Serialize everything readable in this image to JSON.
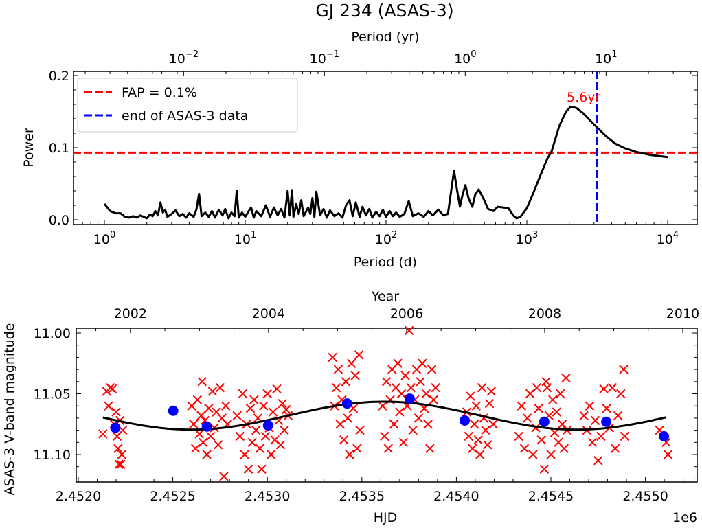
{
  "title": "GJ 234 (ASAS-3)",
  "colors": {
    "fap": "#ff0000",
    "end_line": "#0000ff",
    "curve": "#000000",
    "obs": "#ff0000",
    "binned": "#0000ff",
    "annotation": "#ff0000"
  },
  "chart_data": [
    {
      "type": "line",
      "name": "periodogram",
      "xlabel": "Period (d)",
      "ylabel": "Power",
      "top_xlabel": "Period (yr)",
      "xscale": "log",
      "xlim": [
        0.65,
        15000
      ],
      "ylim": [
        -0.007,
        0.205
      ],
      "xticks": [
        1,
        10,
        100,
        1000,
        10000
      ],
      "xtick_labels": [
        {
          "base": "10",
          "exp": "0"
        },
        {
          "base": "10",
          "exp": "1"
        },
        {
          "base": "10",
          "exp": "2"
        },
        {
          "base": "10",
          "exp": "3"
        },
        {
          "base": "10",
          "exp": "4"
        }
      ],
      "top_xticks_yr": [
        0.01,
        0.1,
        1,
        10
      ],
      "top_xtick_labels": [
        {
          "base": "10",
          "exp": "−2"
        },
        {
          "base": "10",
          "exp": "−1"
        },
        {
          "base": "10",
          "exp": "0"
        },
        {
          "base": "10",
          "exp": "1"
        }
      ],
      "yticks": [
        0.0,
        0.1,
        0.2
      ],
      "ytick_labels": [
        "0.0",
        "0.1",
        "0.2"
      ],
      "fap_level": 0.093,
      "end_of_data_period_d": 3130,
      "annotation": {
        "text": "5.6yr",
        "period_d": 2045,
        "power": 0.176
      },
      "legend": {
        "placement": "top-left",
        "entries": [
          {
            "label": "FAP = 0.1%",
            "color": "#ff0000",
            "style": "dashed"
          },
          {
            "label": "end of ASAS-3 data",
            "color": "#0000ff",
            "style": "dashed"
          }
        ]
      },
      "series": [
        [
          1.0,
          0.022
        ],
        [
          1.1,
          0.012
        ],
        [
          1.2,
          0.009
        ],
        [
          1.3,
          0.009
        ],
        [
          1.4,
          0.004
        ],
        [
          1.5,
          0.003
        ],
        [
          1.6,
          0.005
        ],
        [
          1.7,
          0.003
        ],
        [
          1.8,
          0.006
        ],
        [
          1.9,
          0.004
        ],
        [
          2.0,
          0.002
        ],
        [
          2.1,
          0.007
        ],
        [
          2.2,
          0.005
        ],
        [
          2.3,
          0.012
        ],
        [
          2.4,
          0.006
        ],
        [
          2.5,
          0.024
        ],
        [
          2.6,
          0.01
        ],
        [
          2.7,
          0.014
        ],
        [
          2.8,
          0.004
        ],
        [
          3.0,
          0.008
        ],
        [
          3.2,
          0.013
        ],
        [
          3.4,
          0.005
        ],
        [
          3.6,
          0.008
        ],
        [
          3.8,
          0.003
        ],
        [
          4.0,
          0.009
        ],
        [
          4.3,
          0.004
        ],
        [
          4.5,
          0.014
        ],
        [
          4.7,
          0.036
        ],
        [
          4.9,
          0.005
        ],
        [
          5.2,
          0.01
        ],
        [
          5.5,
          0.004
        ],
        [
          5.8,
          0.012
        ],
        [
          6.1,
          0.003
        ],
        [
          6.5,
          0.014
        ],
        [
          6.9,
          0.006
        ],
        [
          7.2,
          0.015
        ],
        [
          7.6,
          0.002
        ],
        [
          8.0,
          0.01
        ],
        [
          8.4,
          0.005
        ],
        [
          8.7,
          0.04
        ],
        [
          9.0,
          0.003
        ],
        [
          9.5,
          0.01
        ],
        [
          10,
          0.004
        ],
        [
          11,
          0.017
        ],
        [
          11.5,
          0.003
        ],
        [
          12,
          0.012
        ],
        [
          13,
          0.005
        ],
        [
          14,
          0.02
        ],
        [
          15,
          0.004
        ],
        [
          16,
          0.017
        ],
        [
          17,
          0.006
        ],
        [
          18,
          0.015
        ],
        [
          19,
          0.003
        ],
        [
          20,
          0.04
        ],
        [
          20.7,
          0.006
        ],
        [
          21.5,
          0.041
        ],
        [
          22,
          0.004
        ],
        [
          23,
          0.022
        ],
        [
          24,
          0.008
        ],
        [
          25,
          0.027
        ],
        [
          26,
          0.005
        ],
        [
          28,
          0.017
        ],
        [
          29,
          0.008
        ],
        [
          30,
          0.03
        ],
        [
          31,
          0.004
        ],
        [
          32,
          0.039
        ],
        [
          34,
          0.006
        ],
        [
          36,
          0.015
        ],
        [
          38,
          0.003
        ],
        [
          40,
          0.013
        ],
        [
          43,
          0.005
        ],
        [
          46,
          0.009
        ],
        [
          49,
          0.003
        ],
        [
          52,
          0.02
        ],
        [
          55,
          0.027
        ],
        [
          58,
          0.005
        ],
        [
          61,
          0.024
        ],
        [
          65,
          0.004
        ],
        [
          68,
          0.018
        ],
        [
          72,
          0.006
        ],
        [
          76,
          0.015
        ],
        [
          80,
          0.003
        ],
        [
          85,
          0.011
        ],
        [
          90,
          0.005
        ],
        [
          95,
          0.014
        ],
        [
          100,
          0.004
        ],
        [
          106,
          0.012
        ],
        [
          112,
          0.005
        ],
        [
          118,
          0.01
        ],
        [
          125,
          0.004
        ],
        [
          135,
          0.008
        ],
        [
          145,
          0.026
        ],
        [
          155,
          0.005
        ],
        [
          170,
          0.009
        ],
        [
          185,
          0.004
        ],
        [
          200,
          0.012
        ],
        [
          215,
          0.006
        ],
        [
          235,
          0.014
        ],
        [
          255,
          0.006
        ],
        [
          275,
          0.008
        ],
        [
          290,
          0.04
        ],
        [
          304,
          0.068
        ],
        [
          320,
          0.04
        ],
        [
          335,
          0.018
        ],
        [
          350,
          0.035
        ],
        [
          366,
          0.048
        ],
        [
          385,
          0.03
        ],
        [
          410,
          0.018
        ],
        [
          430,
          0.035
        ],
        [
          455,
          0.042
        ],
        [
          490,
          0.03
        ],
        [
          530,
          0.015
        ],
        [
          580,
          0.012
        ],
        [
          620,
          0.018
        ],
        [
          680,
          0.017
        ],
        [
          740,
          0.016
        ],
        [
          800,
          0.006
        ],
        [
          845,
          0.002
        ],
        [
          900,
          0.004
        ],
        [
          1000,
          0.016
        ],
        [
          1100,
          0.035
        ],
        [
          1250,
          0.062
        ],
        [
          1400,
          0.085
        ],
        [
          1500,
          0.095
        ],
        [
          1700,
          0.13
        ],
        [
          1900,
          0.15
        ],
        [
          2050,
          0.157
        ],
        [
          2250,
          0.155
        ],
        [
          2500,
          0.148
        ],
        [
          2800,
          0.138
        ],
        [
          3150,
          0.128
        ],
        [
          3600,
          0.117
        ],
        [
          4200,
          0.106
        ],
        [
          5000,
          0.099
        ],
        [
          6000,
          0.094
        ],
        [
          7500,
          0.09
        ],
        [
          10000,
          0.087
        ]
      ]
    },
    {
      "type": "scatter",
      "name": "light-curve",
      "xlabel": "HJD",
      "x_offset_label": "1e6",
      "ylabel": "ASAS-3 V-band magnitude",
      "top_xlabel": "Year",
      "xlim": [
        2451988,
        2455320
      ],
      "ylim": [
        11.0035,
        10.9965
      ],
      "ylim_display": [
        11.124,
        10.996
      ],
      "y_inverted": true,
      "xticks": [
        2452000,
        2452500,
        2453000,
        2453500,
        2454000,
        2454500,
        2455000
      ],
      "xtick_labels": [
        "2.4520",
        "2.4525",
        "2.4530",
        "2.4535",
        "2.4540",
        "2.4545",
        "2.4550"
      ],
      "top_xticks_year": [
        2002,
        2004,
        2006,
        2008,
        2010
      ],
      "top_xtick_labels": [
        "2002",
        "2004",
        "2006",
        "2008",
        "2010"
      ],
      "yticks": [
        11.0,
        11.05,
        11.1
      ],
      "ytick_labels": [
        "11.00",
        "11.05",
        "11.10"
      ],
      "fit": {
        "type": "sine",
        "mean_mag": 11.068,
        "amplitude": 0.0115,
        "period_d": 2040,
        "epoch_brightest_hjd": 2453618,
        "hjd_range": [
          2452130,
          2455120
        ]
      },
      "binned_points": [
        [
          2452196,
          11.078
        ],
        [
          2452502,
          11.064
        ],
        [
          2452680,
          11.077
        ],
        [
          2453004,
          11.076
        ],
        [
          2453422,
          11.058
        ],
        [
          2453753,
          11.054
        ],
        [
          2454044,
          11.072
        ],
        [
          2454465,
          11.073
        ],
        [
          2454793,
          11.073
        ],
        [
          2455098,
          11.085
        ]
      ],
      "observations_hjd_minus_2450000": [
        [
          2130,
          11.083
        ],
        [
          2150,
          11.048
        ],
        [
          2160,
          11.06
        ],
        [
          2170,
          11.045
        ],
        [
          2180,
          11.046
        ],
        [
          2190,
          11.075
        ],
        [
          2200,
          11.065
        ],
        [
          2205,
          11.085
        ],
        [
          2210,
          11.095
        ],
        [
          2215,
          11.108
        ],
        [
          2220,
          11.072
        ],
        [
          2225,
          11.108
        ],
        [
          2230,
          11.1
        ],
        [
          2235,
          11.08
        ],
        [
          2600,
          11.06
        ],
        [
          2610,
          11.075
        ],
        [
          2620,
          11.095
        ],
        [
          2630,
          11.055
        ],
        [
          2640,
          11.083
        ],
        [
          2650,
          11.068
        ],
        [
          2655,
          11.04
        ],
        [
          2660,
          11.09
        ],
        [
          2670,
          11.072
        ],
        [
          2680,
          11.1
        ],
        [
          2690,
          11.062
        ],
        [
          2700,
          11.085
        ],
        [
          2710,
          11.048
        ],
        [
          2720,
          11.078
        ],
        [
          2730,
          11.065
        ],
        [
          2740,
          11.092
        ],
        [
          2750,
          11.045
        ],
        [
          2760,
          11.07
        ],
        [
          2770,
          11.118
        ],
        [
          2780,
          11.06
        ],
        [
          2790,
          11.075
        ],
        [
          2840,
          11.068
        ],
        [
          2855,
          11.085
        ],
        [
          2870,
          11.05
        ],
        [
          2880,
          11.1
        ],
        [
          2890,
          11.075
        ],
        [
          2900,
          11.112
        ],
        [
          2910,
          11.062
        ],
        [
          2920,
          11.09
        ],
        [
          2930,
          11.055
        ],
        [
          2940,
          11.08
        ],
        [
          2950,
          11.07
        ],
        [
          2960,
          11.095
        ],
        [
          2970,
          11.112
        ],
        [
          2980,
          11.06
        ],
        [
          2990,
          11.085
        ],
        [
          3000,
          11.05
        ],
        [
          3010,
          11.078
        ],
        [
          3020,
          11.1
        ],
        [
          3030,
          11.065
        ],
        [
          3040,
          11.088
        ],
        [
          3050,
          11.046
        ],
        [
          3060,
          11.072
        ],
        [
          3070,
          11.092
        ],
        [
          3080,
          11.058
        ],
        [
          3090,
          11.08
        ],
        [
          3100,
          11.063
        ],
        [
          3110,
          11.068
        ],
        [
          3345,
          11.02
        ],
        [
          3355,
          11.06
        ],
        [
          3365,
          11.045
        ],
        [
          3375,
          11.03
        ],
        [
          3385,
          11.075
        ],
        [
          3395,
          11.055
        ],
        [
          3405,
          11.088
        ],
        [
          3415,
          11.04
        ],
        [
          3425,
          11.07
        ],
        [
          3435,
          11.1
        ],
        [
          3445,
          11.025
        ],
        [
          3455,
          11.062
        ],
        [
          3465,
          11.035
        ],
        [
          3475,
          11.095
        ],
        [
          3485,
          11.018
        ],
        [
          3490,
          11.08
        ],
        [
          3610,
          11.06
        ],
        [
          3620,
          11.085
        ],
        [
          3630,
          11.04
        ],
        [
          3640,
          11.095
        ],
        [
          3650,
          11.055
        ],
        [
          3660,
          11.03
        ],
        [
          3670,
          11.075
        ],
        [
          3680,
          11.045
        ],
        [
          3690,
          11.025
        ],
        [
          3700,
          11.065
        ],
        [
          3710,
          11.05
        ],
        [
          3720,
          11.09
        ],
        [
          3730,
          11.035
        ],
        [
          3740,
          11.06
        ],
        [
          3750,
          10.998
        ],
        [
          3760,
          11.045
        ],
        [
          3770,
          11.08
        ],
        [
          3780,
          11.055
        ],
        [
          3790,
          11.03
        ],
        [
          3800,
          11.07
        ],
        [
          3810,
          11.04
        ],
        [
          3820,
          11.025
        ],
        [
          3830,
          11.062
        ],
        [
          3840,
          11.05
        ],
        [
          3850,
          11.075
        ],
        [
          3860,
          11.095
        ],
        [
          3870,
          11.03
        ],
        [
          3880,
          11.055
        ],
        [
          3890,
          11.045
        ],
        [
          4055,
          11.065
        ],
        [
          4065,
          11.085
        ],
        [
          4075,
          11.052
        ],
        [
          4085,
          11.095
        ],
        [
          4095,
          11.075
        ],
        [
          4105,
          11.06
        ],
        [
          4115,
          11.088
        ],
        [
          4125,
          11.1
        ],
        [
          4135,
          11.045
        ],
        [
          4145,
          11.07
        ],
        [
          4155,
          11.08
        ],
        [
          4165,
          11.092
        ],
        [
          4175,
          11.058
        ],
        [
          4185,
          11.048
        ],
        [
          4195,
          11.075
        ],
        [
          4330,
          11.085
        ],
        [
          4345,
          11.06
        ],
        [
          4360,
          11.095
        ],
        [
          4375,
          11.07
        ],
        [
          4390,
          11.05
        ],
        [
          4405,
          11.1
        ],
        [
          4420,
          11.078
        ],
        [
          4425,
          11.045
        ],
        [
          4435,
          11.062
        ],
        [
          4450,
          11.088
        ],
        [
          4465,
          11.112
        ],
        [
          4475,
          11.04
        ],
        [
          4480,
          11.045
        ],
        [
          4490,
          11.068
        ],
        [
          4500,
          11.1
        ],
        [
          4510,
          11.055
        ],
        [
          4520,
          11.082
        ],
        [
          4530,
          11.065
        ],
        [
          4540,
          11.09
        ],
        [
          4550,
          11.05
        ],
        [
          4560,
          11.075
        ],
        [
          4570,
          11.095
        ],
        [
          4580,
          11.037
        ],
        [
          4585,
          11.08
        ],
        [
          4675,
          11.068
        ],
        [
          4690,
          11.08
        ],
        [
          4705,
          11.06
        ],
        [
          4720,
          11.09
        ],
        [
          4735,
          11.072
        ],
        [
          4750,
          11.105
        ],
        [
          4765,
          11.085
        ],
        [
          4780,
          11.046
        ],
        [
          4795,
          11.062
        ],
        [
          4810,
          11.078
        ],
        [
          4825,
          11.045
        ],
        [
          4840,
          11.095
        ],
        [
          4855,
          11.068
        ],
        [
          4870,
          11.05
        ],
        [
          4885,
          11.03
        ],
        [
          4890,
          11.085
        ],
        [
          5075,
          11.08
        ],
        [
          5110,
          11.09
        ],
        [
          5120,
          11.1
        ]
      ]
    }
  ]
}
